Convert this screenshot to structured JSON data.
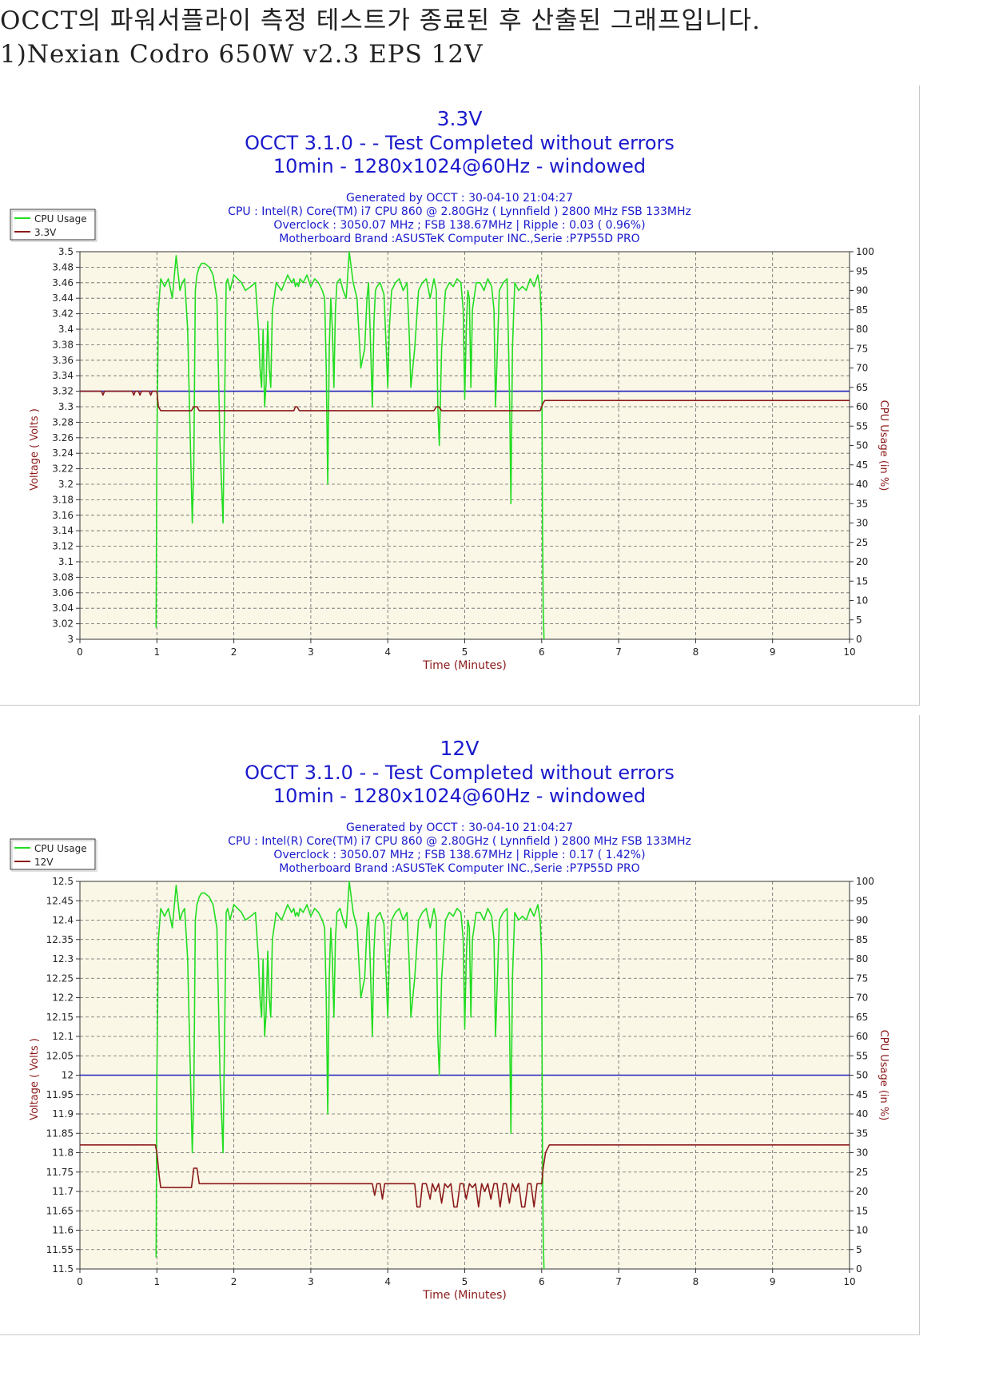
{
  "intro": {
    "line1": "OCCT의 파워서플라이 측정 테스트가 종료된 후 산출된 그래프입니다.",
    "line2": "1)Nexian Codro 650W v2.3 EPS 12V"
  },
  "colors": {
    "title": "#1a1acc",
    "cpu_usage": "#22dd22",
    "voltage": "#8b1a1a",
    "reference": "#2222bb",
    "plot_bg": "#fbf7e7",
    "axis_label": "#8b1a1a"
  },
  "chart_data": [
    {
      "type": "line",
      "title": "3.3V",
      "subtitle": [
        "OCCT 3.1.0 -  - Test Completed without errors",
        "10min - 1280x1024@60Hz - windowed"
      ],
      "info": [
        "Generated by OCCT : 30-04-10 21:04:27",
        "CPU : Intel(R) Core(TM) i7 CPU 860 @ 2.80GHz ( Lynnfield ) 2800 MHz FSB 133MHz",
        "Overclock : 3050.07 MHz ; FSB 138.67MHz | Ripple : 0.03 ( 0.96%)",
        "Motherboard Brand :ASUSTeK Computer INC.,Serie :P7P55D PRO"
      ],
      "xlabel": "Time (Minutes)",
      "ylabel": "Voltage ( Volts )",
      "y2label": "CPU Usage (in %)",
      "xlim": [
        0,
        10
      ],
      "ylim": [
        3.0,
        3.5
      ],
      "y2lim": [
        0,
        100
      ],
      "x_ticks": [
        "0",
        "1",
        "2",
        "3",
        "4",
        "5",
        "6",
        "7",
        "8",
        "9",
        "10"
      ],
      "y_ticks": [
        "3.5",
        "3.48",
        "3.46",
        "3.44",
        "3.42",
        "3.4",
        "3.38",
        "3.36",
        "3.34",
        "3.32",
        "3.3",
        "3.28",
        "3.26",
        "3.24",
        "3.22",
        "3.2",
        "3.18",
        "3.16",
        "3.14",
        "3.12",
        "3.1",
        "3.08",
        "3.06",
        "3.04",
        "3.02",
        "3"
      ],
      "y2_ticks": [
        "100",
        "95",
        "90",
        "85",
        "80",
        "75",
        "70",
        "65",
        "60",
        "55",
        "50",
        "45",
        "40",
        "35",
        "30",
        "25",
        "20",
        "15",
        "10",
        "5",
        "0"
      ],
      "legend": [
        "CPU Usage",
        "3.3V"
      ],
      "legend_position": "top-left",
      "grid": true,
      "reference_value": 3.32,
      "series": [
        {
          "name": "CPU Usage",
          "axis": "right",
          "x": [
            0.99,
            1.0,
            1.02,
            1.05,
            1.1,
            1.15,
            1.2,
            1.25,
            1.3,
            1.33,
            1.36,
            1.4,
            1.43,
            1.46,
            1.48,
            1.5,
            1.52,
            1.55,
            1.58,
            1.62,
            1.68,
            1.73,
            1.78,
            1.82,
            1.86,
            1.88,
            1.9,
            1.92,
            1.95,
            2.0,
            2.05,
            2.1,
            2.15,
            2.22,
            2.28,
            2.32,
            2.34,
            2.36,
            2.38,
            2.4,
            2.42,
            2.44,
            2.46,
            2.48,
            2.5,
            2.55,
            2.62,
            2.7,
            2.75,
            2.78,
            2.8,
            2.82,
            2.84,
            2.86,
            2.9,
            2.95,
            3.0,
            3.05,
            3.1,
            3.15,
            3.18,
            3.2,
            3.22,
            3.24,
            3.26,
            3.28,
            3.3,
            3.32,
            3.34,
            3.38,
            3.42,
            3.46,
            3.5,
            3.55,
            3.6,
            3.65,
            3.7,
            3.73,
            3.75,
            3.77,
            3.8,
            3.82,
            3.84,
            3.86,
            3.9,
            3.95,
            3.98,
            4.0,
            4.02,
            4.05,
            4.1,
            4.15,
            4.2,
            4.25,
            4.28,
            4.3,
            4.35,
            4.4,
            4.45,
            4.5,
            4.55,
            4.6,
            4.63,
            4.65,
            4.67,
            4.7,
            4.75,
            4.8,
            4.85,
            4.9,
            4.95,
            4.98,
            5.0,
            5.02,
            5.04,
            5.06,
            5.08,
            5.1,
            5.15,
            5.2,
            5.25,
            5.3,
            5.35,
            5.38,
            5.4,
            5.42,
            5.45,
            5.5,
            5.55,
            5.58,
            5.6,
            5.62,
            5.65,
            5.7,
            5.75,
            5.8,
            5.85,
            5.9,
            5.95,
            5.98,
            6.0,
            6.01,
            6.02,
            6.03
          ],
          "values": [
            3,
            50,
            85,
            93,
            91,
            93,
            88,
            99,
            90,
            92,
            93,
            80,
            55,
            30,
            45,
            90,
            94,
            96,
            97,
            97,
            96,
            94,
            88,
            50,
            30,
            60,
            92,
            93,
            90,
            94,
            93,
            92,
            90,
            91,
            92,
            80,
            70,
            65,
            80,
            60,
            66,
            82,
            70,
            65,
            85,
            92,
            90,
            94,
            92,
            93,
            91,
            92,
            91,
            93,
            92,
            94,
            91,
            93,
            92,
            90,
            88,
            70,
            40,
            75,
            88,
            80,
            65,
            85,
            92,
            93,
            90,
            88,
            100,
            92,
            88,
            70,
            75,
            88,
            92,
            80,
            60,
            82,
            90,
            91,
            92,
            89,
            75,
            65,
            80,
            90,
            92,
            93,
            90,
            92,
            78,
            65,
            75,
            90,
            92,
            93,
            88,
            93,
            90,
            60,
            50,
            75,
            90,
            92,
            91,
            93,
            92,
            85,
            62,
            80,
            90,
            88,
            65,
            85,
            92,
            92,
            90,
            93,
            91,
            85,
            60,
            72,
            90,
            92,
            93,
            65,
            35,
            75,
            92,
            90,
            91,
            90,
            93,
            91,
            94,
            90,
            80,
            30,
            8,
            0
          ]
        },
        {
          "name": "3.3V",
          "axis": "left",
          "x": [
            0,
            0.2,
            0.28,
            0.3,
            0.32,
            0.4,
            0.6,
            0.68,
            0.7,
            0.72,
            0.76,
            0.78,
            0.8,
            0.9,
            0.92,
            0.94,
            0.98,
            1.0,
            1.02,
            1.05,
            1.1,
            1.45,
            1.48,
            1.5,
            1.52,
            1.55,
            1.6,
            1.65,
            2.5,
            2.78,
            2.8,
            2.82,
            2.85,
            2.9,
            3.5,
            4.6,
            4.63,
            4.66,
            4.7,
            5.0,
            5.9,
            5.98,
            6.0,
            6.02,
            6.04,
            6.06,
            6.1,
            7.0,
            8.0,
            9.0,
            10.0
          ],
          "values": [
            3.32,
            3.32,
            3.32,
            3.315,
            3.32,
            3.32,
            3.32,
            3.32,
            3.315,
            3.32,
            3.32,
            3.315,
            3.32,
            3.32,
            3.315,
            3.32,
            3.32,
            3.32,
            3.3,
            3.295,
            3.295,
            3.295,
            3.3,
            3.3,
            3.3,
            3.295,
            3.295,
            3.295,
            3.295,
            3.295,
            3.3,
            3.3,
            3.295,
            3.295,
            3.295,
            3.295,
            3.3,
            3.3,
            3.295,
            3.295,
            3.295,
            3.295,
            3.3,
            3.305,
            3.308,
            3.308,
            3.308,
            3.308,
            3.308,
            3.308,
            3.308
          ]
        }
      ]
    },
    {
      "type": "line",
      "title": "12V",
      "subtitle": [
        "OCCT 3.1.0 -  - Test Completed without errors",
        "10min - 1280x1024@60Hz - windowed"
      ],
      "info": [
        "Generated by OCCT : 30-04-10 21:04:27",
        "CPU : Intel(R) Core(TM) i7 CPU 860 @ 2.80GHz ( Lynnfield ) 2800 MHz FSB 133MHz",
        "Overclock : 3050.07 MHz ; FSB 138.67MHz | Ripple : 0.17 ( 1.42%)",
        "Motherboard Brand :ASUSTeK Computer INC.,Serie :P7P55D PRO"
      ],
      "xlabel": "Time (Minutes)",
      "ylabel": "Voltage ( Volts )",
      "y2label": "CPU Usage (in %)",
      "xlim": [
        0,
        10
      ],
      "ylim": [
        11.5,
        12.5
      ],
      "y2lim": [
        0,
        100
      ],
      "x_ticks": [
        "0",
        "1",
        "2",
        "3",
        "4",
        "5",
        "6",
        "7",
        "8",
        "9",
        "10"
      ],
      "y_ticks": [
        "12.5",
        "12.45",
        "12.4",
        "12.35",
        "12.3",
        "12.25",
        "12.2",
        "12.15",
        "12.1",
        "12.05",
        "12",
        "11.95",
        "11.9",
        "11.85",
        "11.8",
        "11.75",
        "11.7",
        "11.65",
        "11.6",
        "11.55",
        "11.5"
      ],
      "y2_ticks": [
        "100",
        "95",
        "90",
        "85",
        "80",
        "75",
        "70",
        "65",
        "60",
        "55",
        "50",
        "45",
        "40",
        "35",
        "30",
        "25",
        "20",
        "15",
        "10",
        "5",
        "0"
      ],
      "legend": [
        "CPU Usage",
        "12V"
      ],
      "legend_position": "top-left",
      "grid": true,
      "reference_value": 12.0,
      "series": [
        {
          "name": "CPU Usage",
          "axis": "right",
          "x": [
            0.99,
            1.0,
            1.02,
            1.05,
            1.1,
            1.15,
            1.2,
            1.25,
            1.3,
            1.33,
            1.36,
            1.4,
            1.43,
            1.46,
            1.48,
            1.5,
            1.52,
            1.55,
            1.58,
            1.62,
            1.68,
            1.73,
            1.78,
            1.82,
            1.86,
            1.88,
            1.9,
            1.92,
            1.95,
            2.0,
            2.05,
            2.1,
            2.15,
            2.22,
            2.28,
            2.32,
            2.34,
            2.36,
            2.38,
            2.4,
            2.42,
            2.44,
            2.46,
            2.48,
            2.5,
            2.55,
            2.62,
            2.7,
            2.75,
            2.78,
            2.8,
            2.82,
            2.84,
            2.86,
            2.9,
            2.95,
            3.0,
            3.05,
            3.1,
            3.15,
            3.18,
            3.2,
            3.22,
            3.24,
            3.26,
            3.28,
            3.3,
            3.32,
            3.34,
            3.38,
            3.42,
            3.46,
            3.5,
            3.55,
            3.6,
            3.65,
            3.7,
            3.73,
            3.75,
            3.77,
            3.8,
            3.82,
            3.84,
            3.86,
            3.9,
            3.95,
            3.98,
            4.0,
            4.02,
            4.05,
            4.1,
            4.15,
            4.2,
            4.25,
            4.28,
            4.3,
            4.35,
            4.4,
            4.45,
            4.5,
            4.55,
            4.6,
            4.63,
            4.65,
            4.67,
            4.7,
            4.75,
            4.8,
            4.85,
            4.9,
            4.95,
            4.98,
            5.0,
            5.02,
            5.04,
            5.06,
            5.08,
            5.1,
            5.15,
            5.2,
            5.25,
            5.3,
            5.35,
            5.38,
            5.4,
            5.42,
            5.45,
            5.5,
            5.55,
            5.58,
            5.6,
            5.62,
            5.65,
            5.7,
            5.75,
            5.8,
            5.85,
            5.9,
            5.95,
            5.98,
            6.0,
            6.01,
            6.02,
            6.03
          ],
          "values": [
            3,
            50,
            85,
            93,
            91,
            93,
            88,
            99,
            90,
            92,
            93,
            80,
            55,
            30,
            45,
            90,
            94,
            96,
            97,
            97,
            96,
            94,
            88,
            50,
            30,
            60,
            92,
            93,
            90,
            94,
            93,
            92,
            90,
            91,
            92,
            80,
            70,
            65,
            80,
            60,
            66,
            82,
            70,
            65,
            85,
            92,
            90,
            94,
            92,
            93,
            91,
            92,
            91,
            93,
            92,
            94,
            91,
            93,
            92,
            90,
            88,
            70,
            40,
            75,
            88,
            80,
            65,
            85,
            92,
            93,
            90,
            88,
            100,
            92,
            88,
            70,
            75,
            88,
            92,
            80,
            60,
            82,
            90,
            91,
            92,
            89,
            75,
            65,
            80,
            90,
            92,
            93,
            90,
            92,
            78,
            65,
            75,
            90,
            92,
            93,
            88,
            93,
            90,
            60,
            50,
            75,
            90,
            92,
            91,
            93,
            92,
            85,
            62,
            80,
            90,
            88,
            65,
            85,
            92,
            92,
            90,
            93,
            91,
            85,
            60,
            72,
            90,
            92,
            93,
            65,
            35,
            75,
            92,
            90,
            91,
            90,
            93,
            91,
            94,
            90,
            80,
            30,
            8,
            0
          ]
        },
        {
          "name": "12V",
          "axis": "left",
          "x": [
            0,
            0.98,
            1.0,
            1.03,
            1.05,
            1.1,
            1.4,
            1.45,
            1.48,
            1.52,
            1.55,
            1.6,
            1.65,
            2.0,
            3.0,
            3.8,
            3.83,
            3.86,
            3.9,
            3.93,
            3.96,
            4.0,
            4.05,
            4.3,
            4.35,
            4.38,
            4.42,
            4.45,
            4.5,
            4.55,
            4.58,
            4.62,
            4.66,
            4.7,
            4.74,
            4.78,
            4.82,
            4.86,
            4.9,
            4.94,
            4.98,
            5.02,
            5.06,
            5.1,
            5.14,
            5.18,
            5.22,
            5.26,
            5.3,
            5.34,
            5.38,
            5.42,
            5.46,
            5.5,
            5.54,
            5.58,
            5.62,
            5.66,
            5.7,
            5.74,
            5.78,
            5.82,
            5.86,
            5.9,
            5.94,
            5.98,
            6.0,
            6.02,
            6.05,
            6.1,
            7.0,
            8.0,
            9.0,
            10.0
          ],
          "values": [
            11.82,
            11.82,
            11.8,
            11.74,
            11.71,
            11.71,
            11.71,
            11.71,
            11.76,
            11.76,
            11.72,
            11.72,
            11.72,
            11.72,
            11.72,
            11.72,
            11.69,
            11.72,
            11.72,
            11.68,
            11.72,
            11.72,
            11.72,
            11.72,
            11.72,
            11.66,
            11.66,
            11.72,
            11.72,
            11.68,
            11.72,
            11.7,
            11.72,
            11.67,
            11.72,
            11.71,
            11.72,
            11.66,
            11.66,
            11.72,
            11.72,
            11.68,
            11.72,
            11.71,
            11.72,
            11.66,
            11.72,
            11.7,
            11.72,
            11.68,
            11.72,
            11.72,
            11.66,
            11.72,
            11.72,
            11.67,
            11.72,
            11.7,
            11.72,
            11.66,
            11.66,
            11.72,
            11.72,
            11.66,
            11.72,
            11.72,
            11.72,
            11.76,
            11.8,
            11.82,
            11.82,
            11.82,
            11.82,
            11.82
          ]
        }
      ]
    }
  ]
}
